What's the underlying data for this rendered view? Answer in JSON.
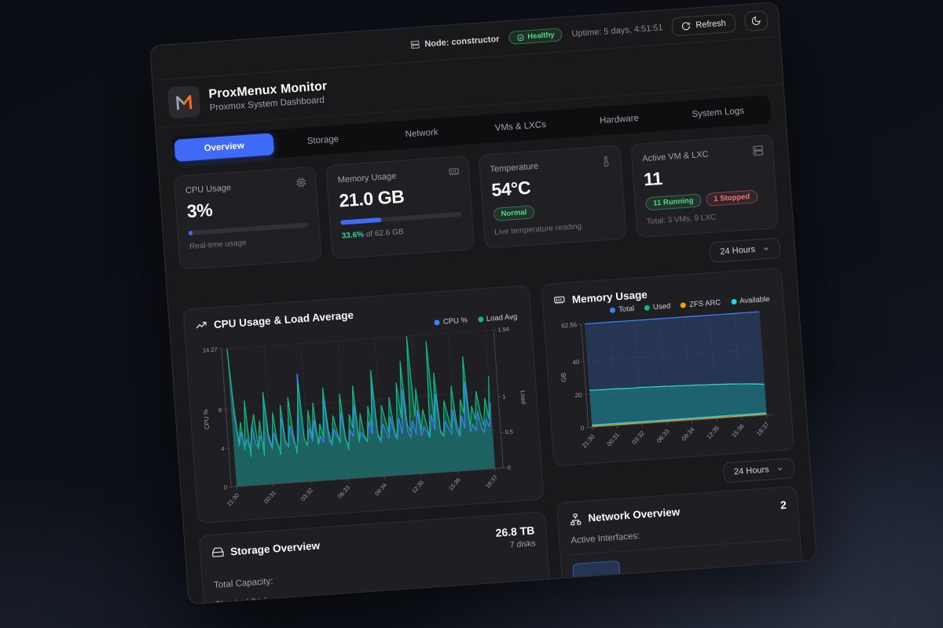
{
  "theme": {
    "accent": "#3f6af5",
    "blue": "#3b82f6",
    "green": "#10b981",
    "orange": "#f59e0b",
    "cyan": "#22d3ee",
    "red": "#ef4444",
    "logo_orange": "#f97316"
  },
  "top_bar": {
    "node": "Node: constructor",
    "health": "Healthy",
    "uptime": "Uptime: 5 days, 4:51:51",
    "refresh": "Refresh"
  },
  "header": {
    "title": "ProxMenux Monitor",
    "subtitle": "Proxmox System Dashboard"
  },
  "tabs": {
    "items": [
      {
        "label": "Overview"
      },
      {
        "label": "Storage"
      },
      {
        "label": "Network"
      },
      {
        "label": "VMs & LXCs"
      },
      {
        "label": "Hardware"
      },
      {
        "label": "System Logs"
      }
    ]
  },
  "cards": {
    "cpu": {
      "title": "CPU Usage",
      "value": "3%",
      "caption": "Real-time usage",
      "progress_pct": 3
    },
    "memory": {
      "title": "Memory Usage",
      "value": "21.0 GB",
      "percent": "33.6%",
      "of": "of 62.6 GB",
      "progress_pct": 33.6
    },
    "temperature": {
      "title": "Temperature",
      "value": "54°C",
      "badge": "Normal",
      "caption": "Live temperature reading"
    },
    "vms": {
      "title": "Active VM & LXC",
      "value": "11",
      "running": "11 Running",
      "stopped": "1 Stopped",
      "caption": "Total: 3 VMs, 9 LXC"
    }
  },
  "time_range": {
    "label": "24 Hours"
  },
  "storage": {
    "title": "Storage Overview",
    "capacity": "26.8 TB",
    "disks": "7 disks",
    "row_capacity": "Total Capacity:",
    "row_disks": "Physical Disks:"
  },
  "network": {
    "title": "Network Overview",
    "value": "2",
    "row": "Active Interfaces:"
  },
  "chart_data": [
    {
      "id": "cpu-load-chart",
      "type": "line",
      "title": "CPU Usage & Load Average",
      "x_labels": [
        "21:30",
        "00:31",
        "03:32",
        "06:33",
        "09:34",
        "12:35",
        "15:36",
        "18:37"
      ],
      "left_axis": {
        "label": "CPU %",
        "ticks": [
          0,
          4,
          8,
          14.27
        ],
        "max": 14.27
      },
      "right_axis": {
        "label": "Load",
        "ticks": [
          0,
          0.5,
          1,
          1.94
        ],
        "max": 1.94
      },
      "grid": true,
      "legend_position": "top-right",
      "series": [
        {
          "name": "CPU %",
          "color": "#3b82f6",
          "axis": "left",
          "fill": "rgba(59,130,246,0.22)",
          "values": [
            14.3,
            7.2,
            4.1,
            5.6,
            3.9,
            4.8,
            3.6,
            6.2,
            4.3,
            3.8,
            5.1,
            4.0,
            8.9,
            4.5,
            3.7,
            5.3,
            4.1,
            3.6,
            6.8,
            4.2,
            3.8,
            5.9,
            4.3,
            3.5,
            4.9,
            11.2,
            4.4,
            3.8,
            5.5,
            4.1,
            6.3,
            3.7,
            4.6,
            3.9,
            8.4,
            4.2,
            3.6,
            5.2,
            4.5,
            3.8,
            6.9,
            4.1,
            3.5,
            5.0,
            4.3,
            7.6,
            3.8,
            4.7,
            4.1,
            3.7,
            5.8,
            4.4,
            9.6,
            4.1,
            3.6,
            5.4,
            4.6,
            3.9,
            6.1,
            4.3,
            3.7,
            5.9,
            4.2,
            8.8,
            4.5,
            3.8,
            5.5,
            4.1,
            6.6,
            3.9,
            4.8,
            4.3,
            3.6,
            6.0,
            4.4,
            8.1,
            4.1,
            3.7,
            5.2,
            4.5,
            3.9,
            6.4,
            4.2,
            3.5,
            5.7,
            4.3,
            9.2,
            3.9,
            4.7,
            4.1,
            6.0,
            4.4,
            3.8,
            5.1,
            4.3,
            6.8
          ]
        },
        {
          "name": "Load Avg",
          "color": "#10b981",
          "axis": "right",
          "fill": "rgba(16,185,129,0.35)",
          "values": [
            1.94,
            1.1,
            0.6,
            0.9,
            0.5,
            1.2,
            0.4,
            0.8,
            1.0,
            0.5,
            0.9,
            0.4,
            1.3,
            0.7,
            0.5,
            1.0,
            0.6,
            0.4,
            1.1,
            0.6,
            0.5,
            1.2,
            0.7,
            0.4,
            0.9,
            1.4,
            0.6,
            0.5,
            1.0,
            0.6,
            1.1,
            0.5,
            0.8,
            0.6,
            1.3,
            0.7,
            0.5,
            0.9,
            0.7,
            0.5,
            1.2,
            0.6,
            0.4,
            0.9,
            0.7,
            1.3,
            0.5,
            0.9,
            0.6,
            0.5,
            1.0,
            0.7,
            1.5,
            0.6,
            0.5,
            1.0,
            0.8,
            0.6,
            1.1,
            0.7,
            0.5,
            1.3,
            0.8,
            1.6,
            0.7,
            0.6,
            1.94,
            0.8,
            1.2,
            0.6,
            0.9,
            0.7,
            0.5,
            1.85,
            0.7,
            1.4,
            0.6,
            0.5,
            1.0,
            0.8,
            0.6,
            1.2,
            0.7,
            0.5,
            1.0,
            0.8,
            1.6,
            0.6,
            0.9,
            0.7,
            1.1,
            0.8,
            0.6,
            1.0,
            0.7,
            1.3
          ]
        }
      ]
    },
    {
      "id": "memory-chart",
      "type": "area",
      "title": "Memory Usage",
      "x_labels": [
        "21:30",
        "00:31",
        "03:32",
        "06:33",
        "09:34",
        "12:35",
        "15:36",
        "18:37"
      ],
      "left_axis": {
        "label": "GB",
        "ticks": [
          0,
          20,
          40,
          62.56
        ],
        "max": 62.56
      },
      "grid": true,
      "legend_position": "top-right",
      "series": [
        {
          "name": "Total",
          "color": "#3b82f6",
          "axis": "left",
          "const": 62.56,
          "fill": "rgba(56,116,203,0.28)"
        },
        {
          "name": "Used",
          "color": "#10b981",
          "stroke": "#2dd4bf",
          "axis": "left",
          "fill": "rgba(20,184,166,0.35)",
          "values": [
            22.4,
            22.3,
            22.2,
            22.3,
            22.1,
            22.0,
            21.9,
            22.0,
            21.8,
            21.7,
            21.6,
            21.5,
            21.4,
            21.2,
            21.1,
            21.0,
            20.8,
            20.7,
            20.5,
            20.3,
            20.1,
            19.8,
            19.5,
            19.1,
            18.7
          ]
        },
        {
          "name": "ZFS ARC",
          "color": "#f59e0b",
          "axis": "left",
          "const": 0.6,
          "fill": "none"
        },
        {
          "name": "Available",
          "color": "#22d3ee",
          "axis": "left",
          "const": 1.3,
          "fill": "none"
        }
      ]
    }
  ]
}
